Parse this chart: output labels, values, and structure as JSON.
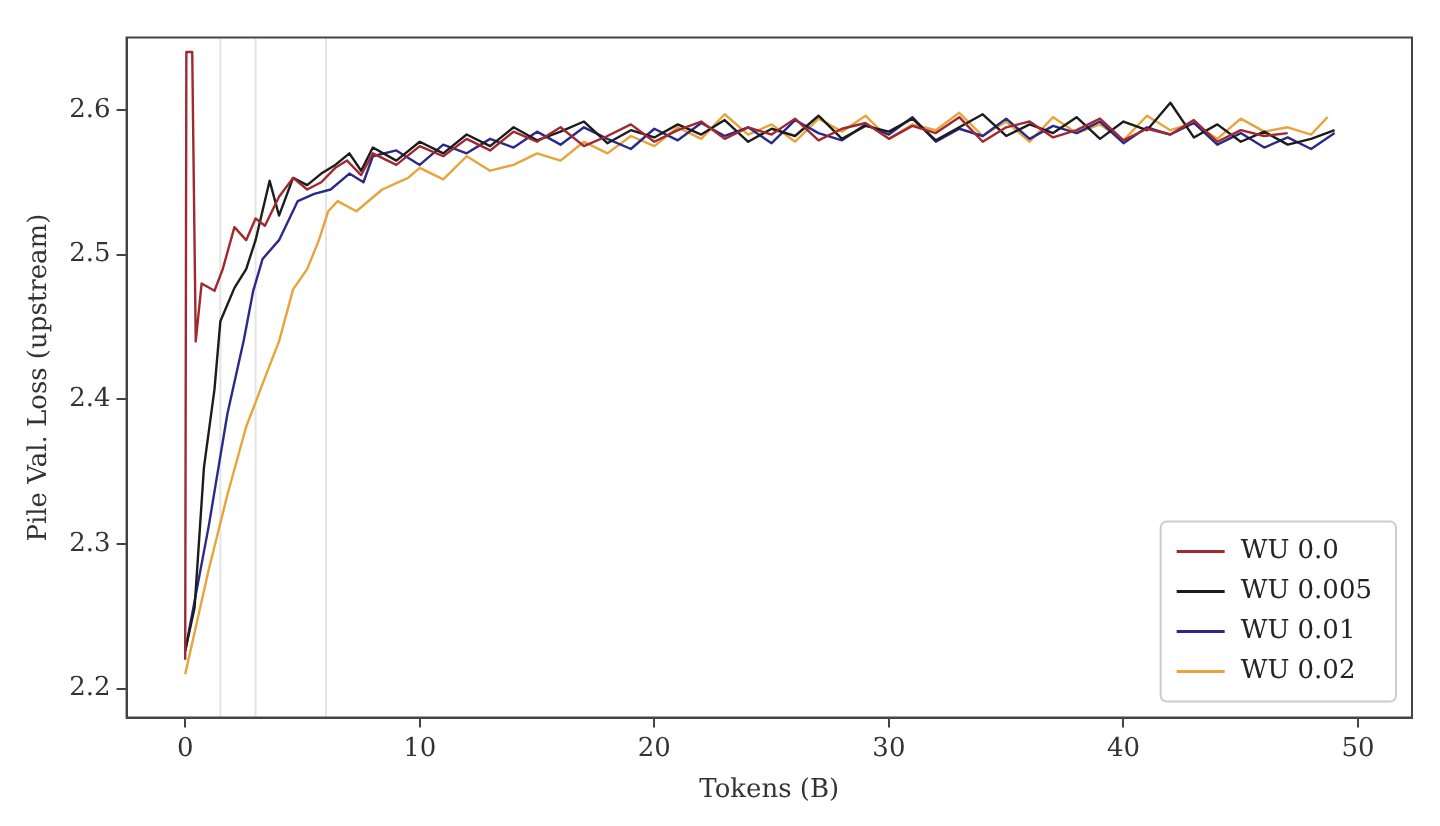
{
  "chart_data": {
    "type": "line",
    "xlabel": "Tokens (B)",
    "ylabel": "Pile Val. Loss (upstream)",
    "xlim": [
      -2.5,
      52.3
    ],
    "xticks": [
      0,
      10,
      20,
      30,
      40,
      50
    ],
    "ylim": [
      2.18,
      2.65
    ],
    "yticks": [
      2.2,
      2.3,
      2.4,
      2.5,
      2.6
    ],
    "grid": false,
    "legend": "bottom right",
    "line_style": "solid",
    "marker": "none",
    "ref_lines": [
      {
        "axis": "x",
        "value": 1.5,
        "label": null,
        "color": "#e4e4e4"
      },
      {
        "axis": "x",
        "value": 3,
        "label": null,
        "color": "#e4e4e4"
      },
      {
        "axis": "x",
        "value": 6,
        "label": null,
        "color": "#e4e4e4"
      }
    ],
    "series": [
      {
        "name": "WU 0.0",
        "color": "#a0282f",
        "x": [
          0,
          0.05,
          0.3,
          0.45,
          0.7,
          1.25,
          1.6,
          2.1,
          2.6,
          3.0,
          3.4,
          4.0,
          4.6,
          5.2,
          5.8,
          6.4,
          6.9,
          7.5,
          8,
          9,
          10,
          11,
          12,
          13,
          14,
          15,
          16,
          17,
          18,
          19,
          20,
          21,
          22,
          23,
          24,
          25,
          26,
          27,
          28,
          29,
          30,
          31,
          32,
          33,
          34,
          35,
          36,
          37,
          38,
          39,
          40,
          41,
          42,
          43,
          44,
          45,
          46,
          47
        ],
        "values": [
          2.22,
          2.64,
          2.64,
          2.44,
          2.48,
          2.475,
          2.49,
          2.519,
          2.51,
          2.525,
          2.52,
          2.54,
          2.553,
          2.545,
          2.55,
          2.56,
          2.565,
          2.555,
          2.57,
          2.562,
          2.575,
          2.568,
          2.58,
          2.572,
          2.585,
          2.578,
          2.588,
          2.575,
          2.582,
          2.59,
          2.578,
          2.586,
          2.592,
          2.58,
          2.588,
          2.583,
          2.594,
          2.579,
          2.587,
          2.591,
          2.58,
          2.589,
          2.584,
          2.595,
          2.578,
          2.588,
          2.592,
          2.581,
          2.586,
          2.594,
          2.579,
          2.587,
          2.583,
          2.593,
          2.578,
          2.586,
          2.582,
          2.584
        ]
      },
      {
        "name": "WU 0.005",
        "color": "#1c1c1c",
        "x": [
          0,
          0.4,
          0.8,
          1.25,
          1.5,
          2.1,
          2.6,
          3.0,
          3.6,
          4.0,
          4.6,
          5.2,
          5.8,
          6.4,
          7.0,
          7.5,
          8,
          9,
          10,
          11,
          12,
          13,
          14,
          15,
          16,
          17,
          18,
          19,
          20,
          21,
          22,
          23,
          24,
          25,
          26,
          27,
          28,
          29,
          30,
          31,
          32,
          33,
          34,
          35,
          36,
          37,
          38,
          39,
          40,
          41,
          42,
          43,
          44,
          45,
          46,
          47,
          48,
          49
        ],
        "values": [
          2.226,
          2.256,
          2.353,
          2.407,
          2.454,
          2.477,
          2.49,
          2.51,
          2.551,
          2.527,
          2.553,
          2.548,
          2.556,
          2.562,
          2.57,
          2.558,
          2.574,
          2.565,
          2.578,
          2.57,
          2.583,
          2.575,
          2.588,
          2.579,
          2.585,
          2.592,
          2.577,
          2.586,
          2.581,
          2.59,
          2.583,
          2.593,
          2.578,
          2.587,
          2.582,
          2.596,
          2.58,
          2.589,
          2.585,
          2.594,
          2.579,
          2.588,
          2.597,
          2.582,
          2.59,
          2.584,
          2.595,
          2.58,
          2.592,
          2.586,
          2.605,
          2.581,
          2.59,
          2.578,
          2.585,
          2.576,
          2.58,
          2.586
        ]
      },
      {
        "name": "WU 0.01",
        "color": "#2b2a8a",
        "x": [
          0,
          1,
          1.8,
          2.5,
          2.9,
          3.3,
          4,
          4.8,
          5.5,
          6.2,
          7,
          7.6,
          8,
          9,
          10,
          11,
          12,
          13,
          14,
          15,
          16,
          17,
          18,
          19,
          20,
          21,
          22,
          23,
          24,
          25,
          26,
          27,
          28,
          29,
          30,
          31,
          32,
          33,
          34,
          35,
          36,
          37,
          38,
          39,
          40,
          41,
          42,
          43,
          44,
          45,
          46,
          47,
          48,
          49
        ],
        "values": [
          2.226,
          2.312,
          2.39,
          2.441,
          2.475,
          2.497,
          2.51,
          2.537,
          2.542,
          2.545,
          2.556,
          2.55,
          2.568,
          2.572,
          2.562,
          2.576,
          2.57,
          2.58,
          2.574,
          2.585,
          2.576,
          2.588,
          2.58,
          2.573,
          2.587,
          2.579,
          2.591,
          2.582,
          2.588,
          2.577,
          2.593,
          2.584,
          2.579,
          2.59,
          2.583,
          2.595,
          2.578,
          2.587,
          2.582,
          2.594,
          2.58,
          2.589,
          2.584,
          2.592,
          2.577,
          2.588,
          2.583,
          2.591,
          2.576,
          2.584,
          2.574,
          2.581,
          2.573,
          2.584
        ]
      },
      {
        "name": "WU 0.02",
        "color": "#e8a33a",
        "x": [
          0,
          1,
          1.8,
          2.6,
          3.4,
          4,
          4.6,
          5.2,
          5.7,
          6.1,
          6.5,
          7.3,
          8.4,
          9.5,
          10,
          11,
          12,
          13,
          14,
          15,
          16,
          17,
          18,
          19,
          20,
          21,
          22,
          23,
          24,
          25,
          26,
          27,
          28,
          29,
          30,
          31,
          32,
          33,
          34,
          35,
          36,
          37,
          38,
          39,
          40,
          41,
          42,
          43,
          44,
          45,
          46,
          47,
          48,
          48.7
        ],
        "values": [
          2.21,
          2.282,
          2.334,
          2.381,
          2.415,
          2.44,
          2.476,
          2.49,
          2.51,
          2.53,
          2.537,
          2.53,
          2.545,
          2.553,
          2.56,
          2.552,
          2.568,
          2.558,
          2.562,
          2.57,
          2.565,
          2.578,
          2.57,
          2.582,
          2.575,
          2.588,
          2.58,
          2.597,
          2.583,
          2.59,
          2.578,
          2.594,
          2.585,
          2.596,
          2.58,
          2.59,
          2.586,
          2.598,
          2.582,
          2.592,
          2.578,
          2.595,
          2.584,
          2.59,
          2.579,
          2.596,
          2.586,
          2.591,
          2.58,
          2.594,
          2.585,
          2.588,
          2.583,
          2.595
        ]
      }
    ]
  }
}
